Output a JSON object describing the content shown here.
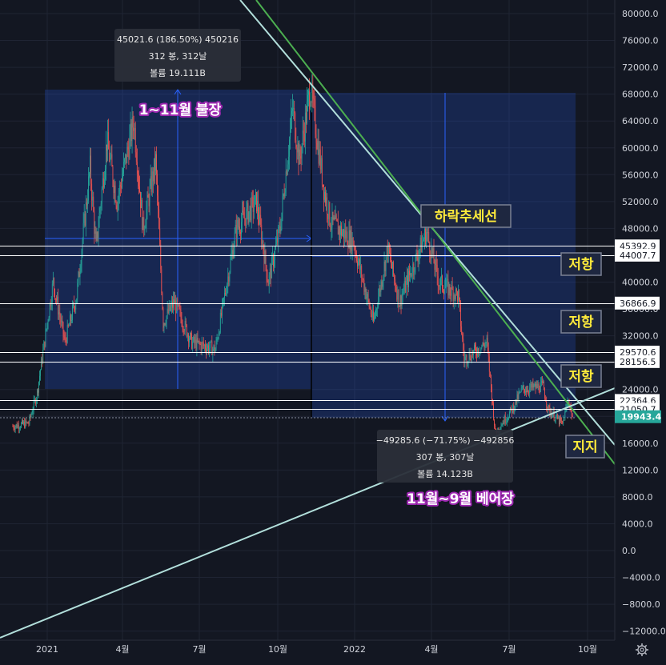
{
  "chart_data": {
    "type": "candlestick",
    "title": "",
    "xlabel": "",
    "ylabel": "",
    "ylim": [
      -13000,
      82000
    ],
    "x_ticks": [
      "2021",
      "4월",
      "7월",
      "10월",
      "2022",
      "4월",
      "7월",
      "10월"
    ],
    "y_ticks": [
      80000,
      76000,
      72000,
      68000,
      64000,
      60000,
      56000,
      52000,
      48000,
      44000,
      40000,
      36000,
      32000,
      28000,
      24000,
      20000,
      16000,
      12000,
      8000,
      4000,
      0,
      -4000,
      -8000,
      -12000
    ],
    "y_tick_labels": [
      "80000.0",
      "76000.0",
      "72000.0",
      "68000.0",
      "64000.0",
      "60000.0",
      "56000.0",
      "52000.0",
      "48000.0",
      "44000.0",
      "40000.0",
      "36000.0",
      "32000.0",
      "28000.0",
      "24000.0",
      "20000.0",
      "16000.0",
      "12000.0",
      "8000.0",
      "4000.0",
      "0.0",
      "−4000.0",
      "−8000.0",
      "−12000.0"
    ],
    "price_path": [
      [
        "2020-11-21",
        18500
      ],
      [
        "2020-12-10",
        19000
      ],
      [
        "2020-12-20",
        23500
      ],
      [
        "2021-01-08",
        40000
      ],
      [
        "2021-01-22",
        31000
      ],
      [
        "2021-02-05",
        38000
      ],
      [
        "2021-02-21",
        57000
      ],
      [
        "2021-02-28",
        45000
      ],
      [
        "2021-03-13",
        61000
      ],
      [
        "2021-03-25",
        52000
      ],
      [
        "2021-04-14",
        64000
      ],
      [
        "2021-04-25",
        48000
      ],
      [
        "2021-05-10",
        58000
      ],
      [
        "2021-05-19",
        34000
      ],
      [
        "2021-06-01",
        37000
      ],
      [
        "2021-06-22",
        31000
      ],
      [
        "2021-07-20",
        30000
      ],
      [
        "2021-08-14",
        48000
      ],
      [
        "2021-09-07",
        52000
      ],
      [
        "2021-09-21",
        40000
      ],
      [
        "2021-10-05",
        48000
      ],
      [
        "2021-10-20",
        66000
      ],
      [
        "2021-10-28",
        58000
      ],
      [
        "2021-11-10",
        69000
      ],
      [
        "2021-11-26",
        54000
      ],
      [
        "2021-12-04",
        49000
      ],
      [
        "2021-12-31",
        46000
      ],
      [
        "2022-01-24",
        34000
      ],
      [
        "2022-02-10",
        45000
      ],
      [
        "2022-02-24",
        37000
      ],
      [
        "2022-03-28",
        47500
      ],
      [
        "2022-04-12",
        40000
      ],
      [
        "2022-05-05",
        38000
      ],
      [
        "2022-05-12",
        28500
      ],
      [
        "2022-06-08",
        31000
      ],
      [
        "2022-06-18",
        17600
      ],
      [
        "2022-07-08",
        21000
      ],
      [
        "2022-07-20",
        24000
      ],
      [
        "2022-08-14",
        24500
      ],
      [
        "2022-08-20",
        21000
      ],
      [
        "2022-09-06",
        18800
      ],
      [
        "2022-09-13",
        22500
      ],
      [
        "2022-09-18",
        19943
      ]
    ],
    "horizontal_levels": [
      {
        "label": "45392.9",
        "value": 45392.9
      },
      {
        "label": "44007.7",
        "value": 44007.7
      },
      {
        "label": "36866.9",
        "value": 36866.9
      },
      {
        "label": "29570.6",
        "value": 29570.6
      },
      {
        "label": "28156.5",
        "value": 28156.5
      },
      {
        "label": "22364.6",
        "value": 22364.6
      },
      {
        "label": "21050.7",
        "value": 21050.7
      }
    ],
    "current_price": {
      "label": "19943.4",
      "value": 19943.4
    },
    "measurements": [
      {
        "name": "bull",
        "tooltip": [
          "45021.6 (186.50%) 450216",
          "312 봉, 312날",
          "볼륨 19.111B"
        ]
      },
      {
        "name": "bear",
        "tooltip": [
          "−49285.6 (−71.75%) −492856",
          "307 봉, 307날",
          "볼륨 14.123B"
        ]
      }
    ],
    "annotations": {
      "bull": "1~11월 불장",
      "bear": "11월~9월 베어장",
      "trend": "하락추세선",
      "resist1": "저항",
      "resist2": "저항",
      "resist3": "저항",
      "support": "지지"
    },
    "colors": {
      "background": "#131722",
      "up": "#26a69a",
      "down": "#ef5350",
      "box": "#2962ff",
      "trend_light": "#b2dfdb",
      "trend_green": "#4caf50",
      "annotation_yellow": "#ffeb3b",
      "annotation_purple": "#9c27b0",
      "price_tag": "#26a69a"
    },
    "settings_icon": "gear-icon"
  }
}
